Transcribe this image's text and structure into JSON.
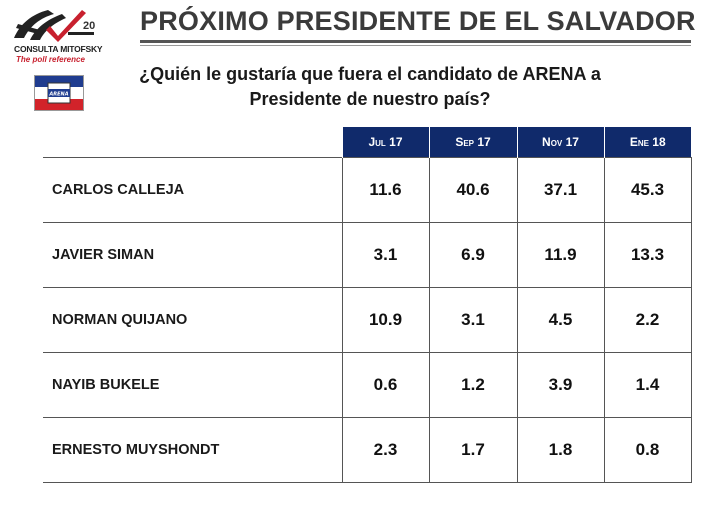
{
  "logo": {
    "brand": "CONSULTA MITOFSKY",
    "tagline": "The poll reference",
    "anniversary": "20"
  },
  "title": "PRÓXIMO PRESIDENTE DE EL SALVADOR",
  "flag_text": "ARENA",
  "question": {
    "line1": "¿Quién le gustaría que fuera el candidato de ARENA a",
    "line2": "Presidente de nuestro país?"
  },
  "colors": {
    "header_bg": "#102a6b",
    "title_text": "#3b3b3b",
    "accent_red": "#c8202e"
  },
  "chart_data": {
    "type": "table",
    "columns": [
      "Jul 17",
      "Sep 17",
      "Nov 17",
      "Ene 18"
    ],
    "rows": [
      {
        "name": "CARLOS CALLEJA",
        "values": [
          "11.6",
          "40.6",
          "37.1",
          "45.3"
        ]
      },
      {
        "name": "JAVIER SIMAN",
        "values": [
          "3.1",
          "6.9",
          "11.9",
          "13.3"
        ]
      },
      {
        "name": "NORMAN QUIJANO",
        "values": [
          "10.9",
          "3.1",
          "4.5",
          "2.2"
        ]
      },
      {
        "name": "NAYIB BUKELE",
        "values": [
          "0.6",
          "1.2",
          "3.9",
          "1.4"
        ]
      },
      {
        "name": "ERNESTO MUYSHONDT",
        "values": [
          "2.3",
          "1.7",
          "1.8",
          "0.8"
        ]
      }
    ]
  }
}
